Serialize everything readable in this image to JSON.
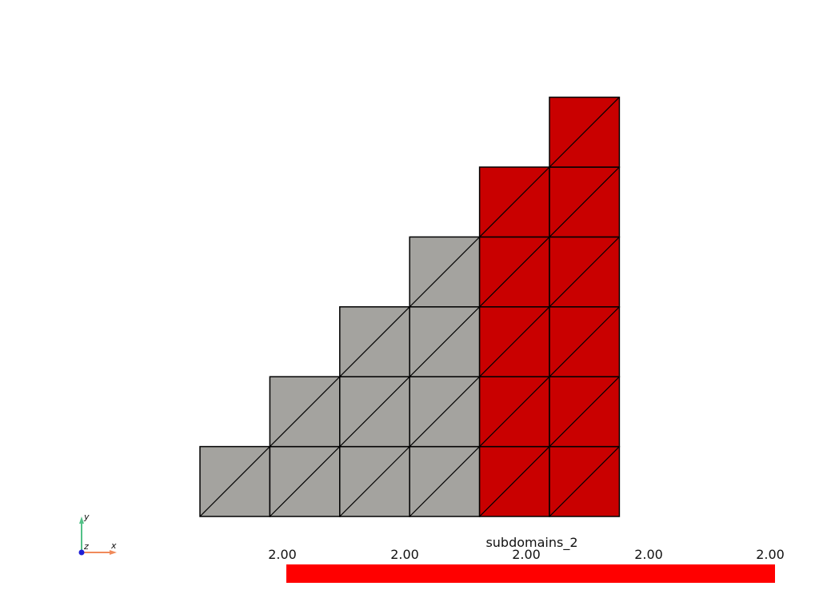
{
  "scene": {
    "mesh": {
      "columns": [
        {
          "col": 0,
          "rows": 1,
          "subdomain": 1
        },
        {
          "col": 1,
          "rows": 2,
          "subdomain": 1
        },
        {
          "col": 2,
          "rows": 3,
          "subdomain": 1
        },
        {
          "col": 3,
          "rows": 4,
          "subdomain": 1
        },
        {
          "col": 4,
          "rows": 5,
          "subdomain": 2
        },
        {
          "col": 5,
          "rows": 6,
          "subdomain": 2
        }
      ],
      "colors": {
        "subdomain_1": "#a4a39f",
        "subdomain_2": "#c90000",
        "edge": "#000000"
      }
    },
    "scalar_bar": {
      "title": "subdomains_2",
      "tick_labels": [
        "2.00",
        "2.00",
        "2.00",
        "2.00",
        "2.00"
      ],
      "color": "#ff0000"
    },
    "axes": {
      "x_label": "x",
      "y_label": "y",
      "z_label": "z",
      "x_color": "#f08a5a",
      "y_color": "#52c187",
      "z_color": "#1f1fd6"
    }
  }
}
